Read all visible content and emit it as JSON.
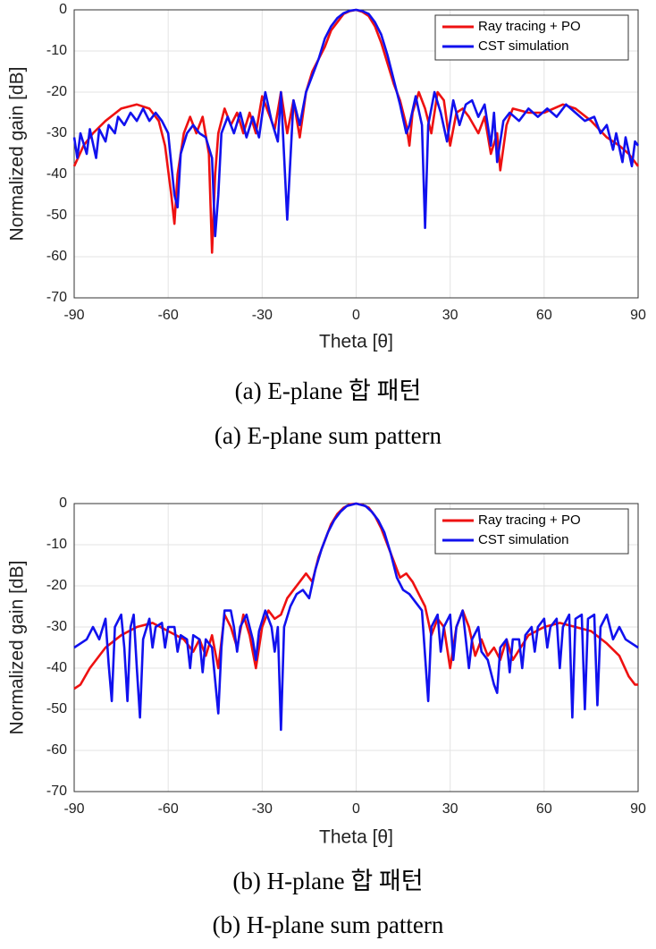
{
  "chart_data": [
    {
      "type": "line",
      "xlabel": "Theta [θ]",
      "ylabel": "Normalized gain [dB]",
      "caption": [
        "(a) E-plane 합 패턴",
        "(a) E-plane sum pattern"
      ],
      "xlim": [
        -90,
        90
      ],
      "ylim": [
        -70,
        0
      ],
      "xticks": [
        -90,
        -60,
        -30,
        0,
        30,
        60,
        90
      ],
      "yticks": [
        -70,
        -60,
        -50,
        -40,
        -30,
        -20,
        -10,
        0
      ],
      "grid": true,
      "legend": "upper right",
      "series": [
        {
          "name": "Ray tracing + PO",
          "color": "#ee1111",
          "x": [
            -90,
            -87,
            -84,
            -80,
            -75,
            -70,
            -66,
            -63,
            -61,
            -59,
            -58,
            -57,
            -55,
            -53,
            -51,
            -49,
            -47,
            -46,
            -45,
            -44,
            -42,
            -40,
            -38,
            -36,
            -34,
            -32,
            -30,
            -28,
            -26,
            -24,
            -22,
            -20,
            -18,
            -16,
            -14,
            -12,
            -10,
            -8,
            -6,
            -4,
            -2,
            0,
            2,
            4,
            6,
            8,
            10,
            12,
            14,
            16,
            17,
            18,
            20,
            22,
            24,
            26,
            28,
            30,
            32,
            34,
            36,
            39,
            41,
            43,
            45,
            46,
            48,
            50,
            55,
            60,
            66,
            70,
            75,
            80,
            84,
            87,
            90
          ],
          "values": [
            -38,
            -33,
            -30,
            -27,
            -24,
            -23,
            -24,
            -27,
            -33,
            -45,
            -52,
            -40,
            -30,
            -26,
            -30,
            -26,
            -35,
            -59,
            -40,
            -30,
            -24,
            -28,
            -25,
            -30,
            -25,
            -30,
            -21,
            -25,
            -29,
            -20,
            -30,
            -22,
            -31,
            -20,
            -15,
            -12,
            -9,
            -5,
            -3,
            -1,
            -0.3,
            0,
            -0.5,
            -1.5,
            -4,
            -8,
            -13,
            -18,
            -22,
            -28,
            -33,
            -25,
            -20,
            -24,
            -30,
            -20,
            -22,
            -33,
            -25,
            -24,
            -26,
            -30,
            -26,
            -35,
            -30,
            -39,
            -28,
            -24,
            -25,
            -25,
            -23,
            -24,
            -27,
            -31,
            -33,
            -35,
            -38
          ]
        },
        {
          "name": "CST simulation",
          "color": "#1111ee",
          "x": [
            -90,
            -89,
            -88,
            -86,
            -85,
            -83,
            -82,
            -80,
            -79,
            -77,
            -76,
            -74,
            -72,
            -70,
            -68,
            -66,
            -64,
            -62,
            -60,
            -58,
            -57,
            -56,
            -54,
            -52,
            -50,
            -48,
            -46,
            -45,
            -44,
            -43,
            -41,
            -39,
            -37,
            -35,
            -33,
            -31,
            -29,
            -27,
            -25,
            -24,
            -22,
            -20,
            -18,
            -16,
            -14,
            -12,
            -10,
            -8,
            -6,
            -4,
            -2,
            0,
            2,
            4,
            6,
            8,
            10,
            12,
            14,
            16,
            17,
            19,
            21,
            22,
            23,
            25,
            27,
            29,
            31,
            33,
            35,
            37,
            39,
            41,
            43,
            44,
            45,
            47,
            49,
            52,
            55,
            58,
            61,
            64,
            67,
            70,
            73,
            76,
            78,
            80,
            82,
            83,
            85,
            86,
            88,
            89,
            90
          ],
          "values": [
            -31,
            -36,
            -30,
            -35,
            -29,
            -36,
            -29,
            -32,
            -28,
            -30,
            -26,
            -28,
            -25,
            -27,
            -24,
            -27,
            -25,
            -27,
            -30,
            -45,
            -48,
            -35,
            -30,
            -28,
            -30,
            -31,
            -36,
            -55,
            -45,
            -30,
            -26,
            -30,
            -25,
            -31,
            -26,
            -31,
            -20,
            -27,
            -32,
            -20,
            -51,
            -22,
            -28,
            -20,
            -16,
            -12,
            -7,
            -4,
            -2,
            -0.8,
            -0.2,
            0,
            -0.3,
            -1,
            -3,
            -6,
            -11,
            -17,
            -23,
            -30,
            -28,
            -21,
            -28,
            -53,
            -28,
            -20,
            -25,
            -32,
            -22,
            -28,
            -23,
            -22,
            -26,
            -23,
            -33,
            -25,
            -37,
            -27,
            -25,
            -27,
            -24,
            -26,
            -24,
            -26,
            -23,
            -25,
            -27,
            -26,
            -30,
            -28,
            -34,
            -30,
            -37,
            -31,
            -38,
            -32,
            -33
          ]
        }
      ]
    },
    {
      "type": "line",
      "xlabel": "Theta [θ]",
      "ylabel": "Normalized gain [dB]",
      "caption": [
        "(b) H-plane 합 패턴",
        "(b) H-plane sum pattern"
      ],
      "xlim": [
        -90,
        90
      ],
      "ylim": [
        -70,
        0
      ],
      "xticks": [
        -90,
        -60,
        -30,
        0,
        30,
        60,
        90
      ],
      "yticks": [
        -70,
        -60,
        -50,
        -40,
        -30,
        -20,
        -10,
        0
      ],
      "grid": true,
      "legend": "upper right",
      "series": [
        {
          "name": "Ray tracing + PO",
          "color": "#ee1111",
          "x": [
            -90,
            -88,
            -85,
            -80,
            -75,
            -70,
            -65,
            -60,
            -55,
            -52,
            -50,
            -48,
            -46,
            -44,
            -42,
            -40,
            -38,
            -36,
            -34,
            -32,
            -30,
            -28,
            -26,
            -24,
            -22,
            -20,
            -18,
            -16,
            -14,
            -12,
            -10,
            -8,
            -6,
            -4,
            -2,
            0,
            2,
            4,
            6,
            8,
            10,
            12,
            14,
            16,
            18,
            20,
            22,
            24,
            26,
            28,
            30,
            32,
            34,
            36,
            38,
            40,
            42,
            44,
            46,
            48,
            50,
            55,
            60,
            65,
            70,
            75,
            80,
            84,
            87,
            89,
            90
          ],
          "values": [
            -45,
            -44,
            -40,
            -35,
            -32,
            -30,
            -29,
            -31,
            -33,
            -36,
            -33,
            -37,
            -32,
            -40,
            -27,
            -30,
            -35,
            -27,
            -32,
            -40,
            -30,
            -26,
            -28,
            -27,
            -23,
            -21,
            -19,
            -17,
            -19,
            -13,
            -9,
            -5,
            -2.5,
            -1,
            -0.2,
            0,
            -0.3,
            -1,
            -3,
            -6,
            -10,
            -14,
            -18,
            -17,
            -19,
            -22,
            -25,
            -32,
            -28,
            -30,
            -40,
            -30,
            -26,
            -30,
            -37,
            -33,
            -37,
            -35,
            -38,
            -33,
            -38,
            -32,
            -30,
            -29,
            -30,
            -31,
            -34,
            -37,
            -42,
            -44,
            -44
          ]
        },
        {
          "name": "CST simulation",
          "color": "#1111ee",
          "x": [
            -90,
            -88,
            -86,
            -84,
            -82,
            -80,
            -79,
            -78,
            -77,
            -75,
            -74,
            -73,
            -72,
            -71,
            -70,
            -69,
            -68,
            -66,
            -65,
            -64,
            -62,
            -61,
            -60,
            -58,
            -57,
            -56,
            -54,
            -53,
            -52,
            -50,
            -49,
            -48,
            -46,
            -45,
            -44,
            -43,
            -42,
            -40,
            -39,
            -38,
            -37,
            -35,
            -33,
            -32,
            -31,
            -29,
            -27,
            -26,
            -25,
            -24,
            -23,
            -21,
            -19,
            -17,
            -15,
            -13,
            -11,
            -9,
            -7,
            -5,
            -3,
            0,
            3,
            5,
            7,
            9,
            11,
            13,
            15,
            17,
            19,
            21,
            23,
            24,
            26,
            27,
            28,
            30,
            31,
            32,
            34,
            36,
            37,
            39,
            40,
            42,
            44,
            45,
            46,
            48,
            49,
            50,
            52,
            53,
            54,
            56,
            57,
            58,
            60,
            61,
            62,
            64,
            65,
            66,
            68,
            69,
            70,
            72,
            73,
            74,
            76,
            77,
            78,
            80,
            82,
            84,
            86,
            88,
            90
          ],
          "values": [
            -35,
            -34,
            -33,
            -30,
            -33,
            -28,
            -39,
            -48,
            -30,
            -27,
            -35,
            -48,
            -30,
            -27,
            -40,
            -52,
            -33,
            -28,
            -35,
            -30,
            -29,
            -35,
            -30,
            -30,
            -36,
            -32,
            -33,
            -40,
            -32,
            -33,
            -41,
            -33,
            -35,
            -43,
            -51,
            -35,
            -26,
            -26,
            -30,
            -36,
            -30,
            -27,
            -33,
            -38,
            -31,
            -26,
            -30,
            -36,
            -30,
            -55,
            -30,
            -25,
            -22,
            -21,
            -23,
            -16,
            -11,
            -7,
            -4,
            -2,
            -0.6,
            0,
            -0.6,
            -2,
            -4,
            -7,
            -12,
            -18,
            -21,
            -22,
            -24,
            -26,
            -48,
            -30,
            -27,
            -36,
            -30,
            -27,
            -38,
            -30,
            -26,
            -40,
            -33,
            -30,
            -36,
            -38,
            -44,
            -46,
            -35,
            -33,
            -41,
            -33,
            -33,
            -40,
            -32,
            -30,
            -36,
            -30,
            -28,
            -35,
            -30,
            -28,
            -40,
            -30,
            -27,
            -52,
            -28,
            -27,
            -50,
            -28,
            -27,
            -49,
            -30,
            -27,
            -33,
            -30,
            -33,
            -34,
            -35
          ]
        }
      ]
    }
  ]
}
